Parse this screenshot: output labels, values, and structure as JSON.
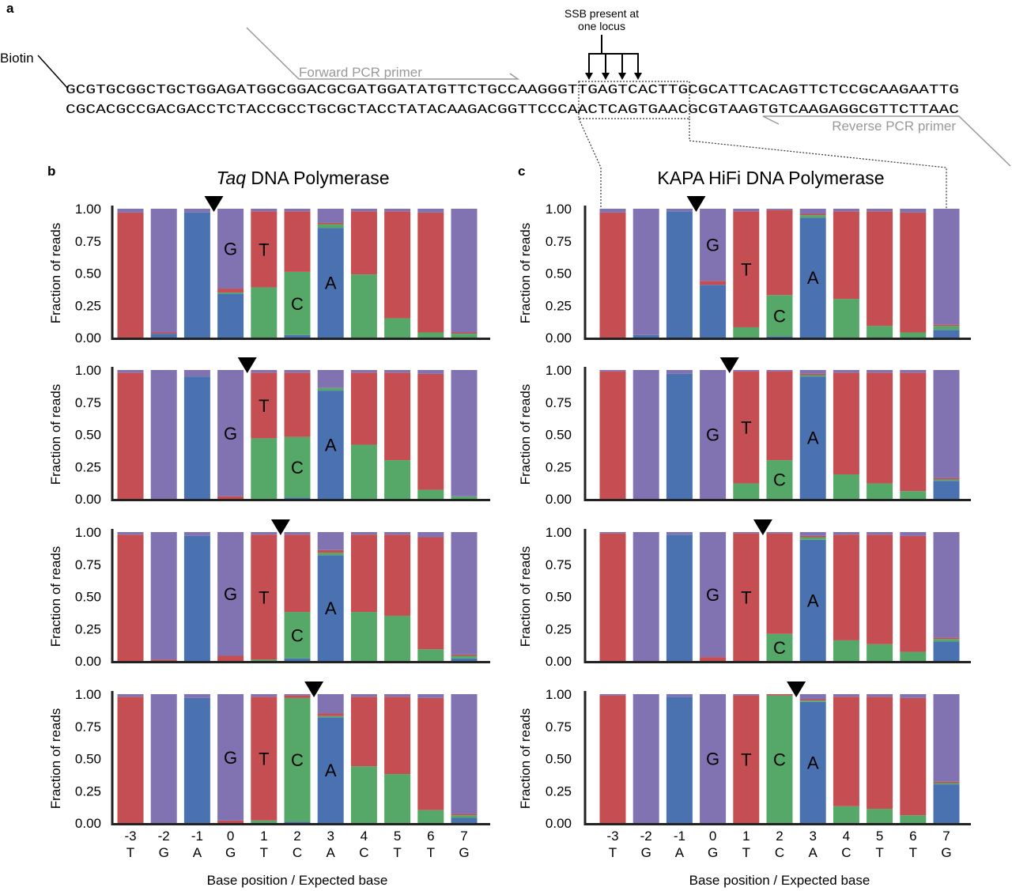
{
  "panel_a": {
    "label": "a",
    "biotin_label": "Biotin",
    "top_strand": "GCGTGCGGCTGCTGGAGATGGCGGACGCGATGGATATGTTCTGCCAAGGGTTGAGTCACTTGCGCATTCACAGTTCTCCGCAAGAATTG",
    "bottom_strand": "CGCACGCCGACGACCTCTACCGCCTGCGCTACCTATACAAGACGGTTCCCAACTCAGTGAACGCGTAAGTGTCAAGAGGCGTTCTTAAC",
    "forward_primer_label": "Forward PCR primer",
    "reverse_primer_label": "Reverse PCR primer",
    "ssb_label_line1": "SSB present at",
    "ssb_label_line2": "one locus",
    "primer_color": "#999999"
  },
  "colors": {
    "A": "#4a72b0",
    "C": "#55a868",
    "T": "#c44e52",
    "G": "#8172b2"
  },
  "chart_data": [
    {
      "type": "bar",
      "stacked": true,
      "panel_label": "b",
      "title_italic": "Taq",
      "title_rest": " DNA Polymerase",
      "ylabel": "Fraction of reads",
      "xlabel": "Base position / Expected base",
      "positions": [
        "-3",
        "-2",
        "-1",
        "0",
        "1",
        "2",
        "3",
        "4",
        "5",
        "6",
        "7"
      ],
      "expected_bases": [
        "T",
        "G",
        "A",
        "G",
        "T",
        "C",
        "A",
        "C",
        "T",
        "T",
        "G"
      ],
      "ylim": [
        0,
        1
      ],
      "yticks": [
        "0.00",
        "0.25",
        "0.50",
        "0.75",
        "1.00"
      ],
      "stack_order": [
        "A",
        "C",
        "T",
        "G"
      ],
      "annotations": [
        {
          "text": "G",
          "position": "0"
        },
        {
          "text": "T",
          "position": "1"
        },
        {
          "text": "C",
          "position": "2"
        },
        {
          "text": "A",
          "position": "3"
        }
      ],
      "rows": [
        {
          "marker_between": [
            "-1",
            "0"
          ],
          "series": [
            {
              "base": "A",
              "values": [
                0,
                0.03,
                0.97,
                0.34,
                0,
                0.02,
                0.85,
                0,
                0,
                0,
                0
              ]
            },
            {
              "base": "C",
              "values": [
                0,
                0,
                0,
                0.01,
                0.39,
                0.49,
                0.03,
                0.49,
                0.15,
                0.04,
                0.03
              ]
            },
            {
              "base": "T",
              "values": [
                0.97,
                0.01,
                0,
                0.03,
                0.59,
                0.47,
                0.01,
                0.49,
                0.83,
                0.93,
                0.01
              ]
            },
            {
              "base": "G",
              "values": [
                0.03,
                0.96,
                0.03,
                0.62,
                0.02,
                0.02,
                0.11,
                0.02,
                0.02,
                0.03,
                0.96
              ]
            }
          ]
        },
        {
          "marker_between": [
            "0",
            "1"
          ],
          "series": [
            {
              "base": "A",
              "values": [
                0,
                0,
                0.95,
                0,
                0,
                0.01,
                0.84,
                0,
                0,
                0,
                0
              ]
            },
            {
              "base": "C",
              "values": [
                0,
                0,
                0,
                0,
                0.47,
                0.47,
                0.02,
                0.42,
                0.3,
                0.07,
                0.02
              ]
            },
            {
              "base": "T",
              "values": [
                0.98,
                0,
                0,
                0.02,
                0.51,
                0.5,
                0,
                0.56,
                0.68,
                0.9,
                0
              ]
            },
            {
              "base": "G",
              "values": [
                0.02,
                1,
                0.05,
                0.98,
                0.02,
                0.02,
                0.14,
                0.02,
                0.02,
                0.03,
                0.98
              ]
            }
          ]
        },
        {
          "marker_between": [
            "1",
            "2"
          ],
          "series": [
            {
              "base": "A",
              "values": [
                0,
                0,
                0.97,
                0,
                0,
                0.02,
                0.82,
                0,
                0,
                0,
                0.02
              ]
            },
            {
              "base": "C",
              "values": [
                0,
                0,
                0,
                0,
                0.01,
                0.36,
                0.02,
                0.38,
                0.35,
                0.09,
                0.02
              ]
            },
            {
              "base": "T",
              "values": [
                0.98,
                0.01,
                0,
                0.04,
                0.97,
                0.6,
                0.02,
                0.6,
                0.63,
                0.87,
                0.01
              ]
            },
            {
              "base": "G",
              "values": [
                0.02,
                0.99,
                0.03,
                0.96,
                0.02,
                0.02,
                0.14,
                0.02,
                0.02,
                0.04,
                0.95
              ]
            }
          ]
        },
        {
          "marker_between": [
            "2",
            "3"
          ],
          "series": [
            {
              "base": "A",
              "values": [
                0,
                0,
                0.97,
                0,
                0,
                0.01,
                0.82,
                0,
                0,
                0,
                0.04
              ]
            },
            {
              "base": "C",
              "values": [
                0,
                0,
                0,
                0,
                0.02,
                0.96,
                0.01,
                0.44,
                0.38,
                0.1,
                0.02
              ]
            },
            {
              "base": "T",
              "values": [
                0.98,
                0,
                0,
                0.02,
                0.96,
                0.02,
                0.02,
                0.54,
                0.6,
                0.87,
                0.01
              ]
            },
            {
              "base": "G",
              "values": [
                0.02,
                1,
                0.03,
                0.98,
                0.02,
                0.01,
                0.15,
                0.02,
                0.02,
                0.03,
                0.93
              ]
            }
          ]
        }
      ]
    },
    {
      "type": "bar",
      "stacked": true,
      "panel_label": "c",
      "title_italic": "",
      "title_rest": "KAPA HiFi DNA Polymerase",
      "ylabel": "Fraction of reads",
      "xlabel": "Base position / Expected base",
      "positions": [
        "-3",
        "-2",
        "-1",
        "0",
        "1",
        "2",
        "3",
        "4",
        "5",
        "6",
        "7"
      ],
      "expected_bases": [
        "T",
        "G",
        "A",
        "G",
        "T",
        "C",
        "A",
        "C",
        "T",
        "T",
        "G"
      ],
      "ylim": [
        0,
        1
      ],
      "yticks": [
        "0.00",
        "0.25",
        "0.50",
        "0.75",
        "1.00"
      ],
      "stack_order": [
        "A",
        "C",
        "T",
        "G"
      ],
      "annotations": [
        {
          "text": "G",
          "position": "0"
        },
        {
          "text": "T",
          "position": "1"
        },
        {
          "text": "C",
          "position": "2"
        },
        {
          "text": "A",
          "position": "3"
        }
      ],
      "rows": [
        {
          "marker_between": [
            "-1",
            "0"
          ],
          "series": [
            {
              "base": "A",
              "values": [
                0,
                0.02,
                0.98,
                0.41,
                0,
                0.01,
                0.93,
                0,
                0,
                0,
                0.06
              ]
            },
            {
              "base": "C",
              "values": [
                0,
                0,
                0,
                0,
                0.08,
                0.32,
                0.02,
                0.3,
                0.09,
                0.04,
                0.03
              ]
            },
            {
              "base": "T",
              "values": [
                0.97,
                0,
                0,
                0.03,
                0.9,
                0.66,
                0.01,
                0.68,
                0.89,
                0.93,
                0.01
              ]
            },
            {
              "base": "G",
              "values": [
                0.03,
                0.98,
                0.02,
                0.56,
                0.02,
                0.01,
                0.04,
                0.02,
                0.02,
                0.03,
                0.9
              ]
            }
          ]
        },
        {
          "marker_between": [
            "0",
            "1"
          ],
          "series": [
            {
              "base": "A",
              "values": [
                0,
                0,
                0.97,
                0,
                0,
                0,
                0.95,
                0,
                0,
                0,
                0.14
              ]
            },
            {
              "base": "C",
              "values": [
                0,
                0,
                0,
                0,
                0.12,
                0.3,
                0.01,
                0.19,
                0.12,
                0.06,
                0.01
              ]
            },
            {
              "base": "T",
              "values": [
                0.99,
                0,
                0,
                0,
                0.87,
                0.69,
                0.01,
                0.79,
                0.86,
                0.92,
                0.01
              ]
            },
            {
              "base": "G",
              "values": [
                0.01,
                1,
                0.03,
                1,
                0.01,
                0.01,
                0.03,
                0.02,
                0.02,
                0.02,
                0.84
              ]
            }
          ]
        },
        {
          "marker_between": [
            "1",
            "2"
          ],
          "series": [
            {
              "base": "A",
              "values": [
                0,
                0,
                0.98,
                0,
                0,
                0,
                0.94,
                0,
                0,
                0,
                0.15
              ]
            },
            {
              "base": "C",
              "values": [
                0,
                0,
                0,
                0,
                0,
                0.21,
                0.02,
                0.16,
                0.13,
                0.07,
                0.02
              ]
            },
            {
              "base": "T",
              "values": [
                0.99,
                0,
                0,
                0.03,
                0.99,
                0.78,
                0.01,
                0.82,
                0.85,
                0.9,
                0.01
              ]
            },
            {
              "base": "G",
              "values": [
                0.01,
                1,
                0.02,
                0.97,
                0.01,
                0.01,
                0.03,
                0.02,
                0.02,
                0.03,
                0.82
              ]
            }
          ]
        },
        {
          "marker_between": [
            "2",
            "3"
          ],
          "series": [
            {
              "base": "A",
              "values": [
                0,
                0,
                0.98,
                0,
                0,
                0,
                0.94,
                0,
                0,
                0,
                0.3
              ]
            },
            {
              "base": "C",
              "values": [
                0,
                0,
                0,
                0,
                0,
                0.99,
                0.01,
                0.13,
                0.11,
                0.06,
                0.01
              ]
            },
            {
              "base": "T",
              "values": [
                0.99,
                0,
                0,
                0,
                0.99,
                0.01,
                0.01,
                0.85,
                0.87,
                0.91,
                0.01
              ]
            },
            {
              "base": "G",
              "values": [
                0.01,
                1,
                0.02,
                1,
                0.01,
                0,
                0.04,
                0.02,
                0.02,
                0.03,
                0.68
              ]
            }
          ]
        }
      ]
    }
  ]
}
